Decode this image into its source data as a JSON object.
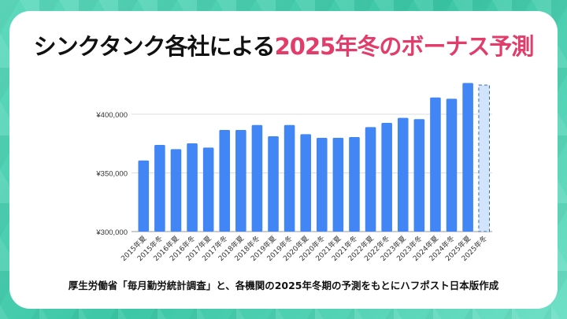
{
  "title": {
    "part1": "シンクタンク各社による",
    "part2": "2025年冬のボーナス予測"
  },
  "source": "厚生労働省「毎月勤労統計調査」と、各機関の2025年冬期の予測をもとにハフポスト日本版作成",
  "colors": {
    "bar": "#4285f4",
    "forecast_fill": "#d2e3fc",
    "forecast_border": "#3b6bb5",
    "title_accent": "#e23d6a",
    "background": "#3cc7a6"
  },
  "chart_data": {
    "type": "bar",
    "categories": [
      "2015年夏",
      "2015年冬",
      "2016年夏",
      "2016年冬",
      "2017年夏",
      "2017年冬",
      "2018年夏",
      "2018年冬",
      "2019年夏",
      "2019年冬",
      "2020年夏",
      "2020年冬",
      "2021年夏",
      "2021年冬",
      "2022年夏",
      "2022年冬",
      "2023年夏",
      "2023年冬",
      "2024年夏",
      "2024年冬",
      "2025年夏",
      "2025年冬"
    ],
    "values": [
      360600,
      373800,
      370200,
      375200,
      371600,
      386600,
      386600,
      390800,
      381200,
      390800,
      383000,
      379900,
      379900,
      380500,
      389000,
      392600,
      396900,
      395800,
      414300,
      413200,
      426600,
      424800
    ],
    "forecast_index": 21,
    "ylim": [
      300000,
      430000
    ],
    "yticks": [
      300000,
      350000,
      400000
    ],
    "ytick_labels": [
      "¥300,000",
      "¥350,000",
      "¥400,000"
    ],
    "grid": true,
    "title": "",
    "xlabel": "",
    "ylabel": ""
  }
}
